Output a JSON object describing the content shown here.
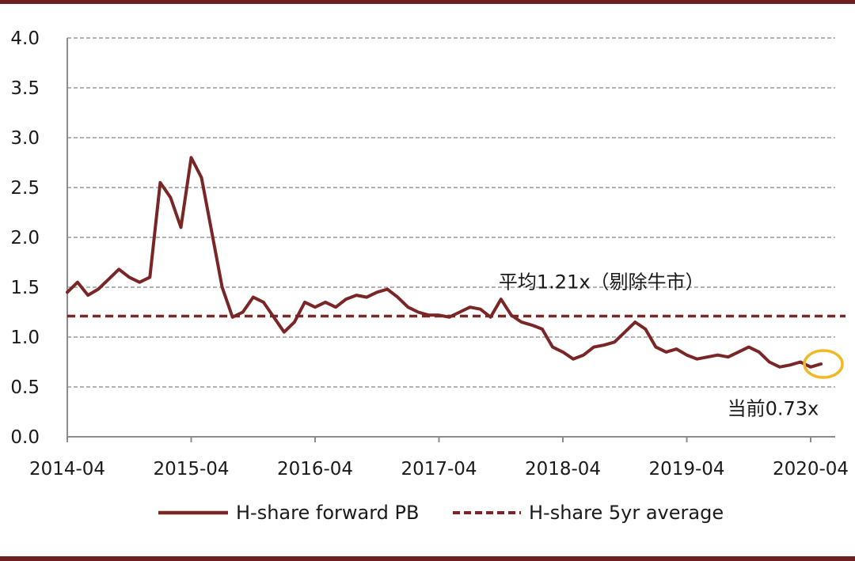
{
  "chart_data": {
    "type": "line",
    "title": "",
    "xlabel": "",
    "ylabel": "",
    "ylim": [
      0,
      4
    ],
    "yticks": [
      "0.0",
      "0.5",
      "1.0",
      "1.5",
      "2.0",
      "2.5",
      "3.0",
      "3.5",
      "4.0"
    ],
    "xticks": [
      "2014-04",
      "2015-04",
      "2016-04",
      "2017-04",
      "2018-04",
      "2019-04",
      "2020-04"
    ],
    "xlim": [
      "2014-04",
      "2020-06"
    ],
    "grid": "horizontal dashed",
    "legend_position": "bottom",
    "series": [
      {
        "name": "H-share forward PB",
        "color": "#7a2626",
        "style": "solid",
        "points": [
          [
            "2014-04",
            1.45
          ],
          [
            "2014-05",
            1.55
          ],
          [
            "2014-06",
            1.42
          ],
          [
            "2014-07",
            1.48
          ],
          [
            "2014-08",
            1.58
          ],
          [
            "2014-09",
            1.68
          ],
          [
            "2014-10",
            1.6
          ],
          [
            "2014-11",
            1.55
          ],
          [
            "2014-12",
            1.6
          ],
          [
            "2015-01",
            2.55
          ],
          [
            "2015-02",
            2.4
          ],
          [
            "2015-03",
            2.1
          ],
          [
            "2015-04",
            2.8
          ],
          [
            "2015-05",
            2.6
          ],
          [
            "2015-06",
            2.05
          ],
          [
            "2015-07",
            1.5
          ],
          [
            "2015-08",
            1.2
          ],
          [
            "2015-09",
            1.25
          ],
          [
            "2015-10",
            1.4
          ],
          [
            "2015-11",
            1.35
          ],
          [
            "2015-12",
            1.2
          ],
          [
            "2016-01",
            1.05
          ],
          [
            "2016-02",
            1.15
          ],
          [
            "2016-03",
            1.35
          ],
          [
            "2016-04",
            1.3
          ],
          [
            "2016-05",
            1.35
          ],
          [
            "2016-06",
            1.3
          ],
          [
            "2016-07",
            1.38
          ],
          [
            "2016-08",
            1.42
          ],
          [
            "2016-09",
            1.4
          ],
          [
            "2016-10",
            1.45
          ],
          [
            "2016-11",
            1.48
          ],
          [
            "2016-12",
            1.4
          ],
          [
            "2017-01",
            1.3
          ],
          [
            "2017-02",
            1.25
          ],
          [
            "2017-03",
            1.22
          ],
          [
            "2017-04",
            1.22
          ],
          [
            "2017-05",
            1.2
          ],
          [
            "2017-06",
            1.25
          ],
          [
            "2017-07",
            1.3
          ],
          [
            "2017-08",
            1.28
          ],
          [
            "2017-09",
            1.2
          ],
          [
            "2017-10",
            1.38
          ],
          [
            "2017-11",
            1.22
          ],
          [
            "2017-12",
            1.15
          ],
          [
            "2018-01",
            1.12
          ],
          [
            "2018-02",
            1.08
          ],
          [
            "2018-03",
            0.9
          ],
          [
            "2018-04",
            0.85
          ],
          [
            "2018-05",
            0.78
          ],
          [
            "2018-06",
            0.82
          ],
          [
            "2018-07",
            0.9
          ],
          [
            "2018-08",
            0.92
          ],
          [
            "2018-09",
            0.95
          ],
          [
            "2018-10",
            1.05
          ],
          [
            "2018-11",
            1.15
          ],
          [
            "2018-12",
            1.08
          ],
          [
            "2019-01",
            0.9
          ],
          [
            "2019-02",
            0.85
          ],
          [
            "2019-03",
            0.88
          ],
          [
            "2019-04",
            0.82
          ],
          [
            "2019-05",
            0.78
          ],
          [
            "2019-06",
            0.8
          ],
          [
            "2019-07",
            0.82
          ],
          [
            "2019-08",
            0.8
          ],
          [
            "2019-09",
            0.85
          ],
          [
            "2019-10",
            0.9
          ],
          [
            "2019-11",
            0.85
          ],
          [
            "2019-12",
            0.75
          ],
          [
            "2020-01",
            0.7
          ],
          [
            "2020-02",
            0.72
          ],
          [
            "2020-03",
            0.75
          ],
          [
            "2020-04",
            0.7
          ],
          [
            "2020-05",
            0.73
          ]
        ]
      },
      {
        "name": "H-share 5yr average",
        "color": "#7a2626",
        "style": "dashed",
        "value": 1.21
      }
    ],
    "annotations": [
      {
        "text": "平均1.21x（剔除牛市）",
        "at": [
          "2018-02",
          1.55
        ]
      },
      {
        "text": "当前0.73x",
        "at": [
          "2019-07",
          0.28
        ]
      }
    ],
    "highlight": {
      "shape": "ellipse",
      "color": "#f2b824",
      "at": [
        "2020-05",
        0.73
      ]
    }
  }
}
